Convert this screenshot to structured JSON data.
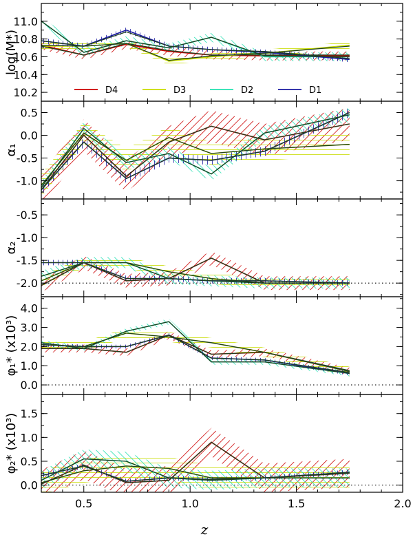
{
  "chart_data": {
    "type": "line",
    "xlabel": "z",
    "xlim": [
      0.3,
      2.0
    ],
    "x_ticks": [
      "0.5",
      "1.0",
      "1.5",
      "2.0"
    ],
    "x_tick_values": [
      0.5,
      1.0,
      1.5,
      2.0
    ],
    "legend": [
      {
        "name": "D4",
        "color": "#cc0000"
      },
      {
        "name": "D3",
        "color": "#c8dc00"
      },
      {
        "name": "D2",
        "color": "#22e0b0"
      },
      {
        "name": "D1",
        "color": "#1a1aa0"
      }
    ],
    "fit_line_color": "#1f4020",
    "panels": [
      {
        "ylabel": "log(M*)",
        "ylim": [
          10.1,
          11.2
        ],
        "yticks": [
          10.2,
          10.4,
          10.6,
          10.8,
          11.0
        ],
        "ytick_labels": [
          "10.2",
          "10.4",
          "10.6",
          "10.8",
          "11.0"
        ],
        "hline": null,
        "series": [
          {
            "name": "D4",
            "x": [
              0.3,
              0.5,
              0.7,
              0.9,
              1.1,
              1.35,
              1.75
            ],
            "y": [
              10.73,
              10.62,
              10.74,
              10.66,
              10.62,
              10.61,
              10.61
            ],
            "err": 0.05
          },
          {
            "name": "D3",
            "x": [
              0.3,
              0.5,
              0.7,
              0.9,
              1.1,
              1.35,
              1.75
            ],
            "y": [
              10.72,
              10.72,
              10.75,
              10.55,
              10.6,
              10.64,
              10.73
            ],
            "err": 0.04
          },
          {
            "name": "D2",
            "x": [
              0.3,
              0.5,
              0.7,
              0.9,
              1.1,
              1.35,
              1.75
            ],
            "y": [
              11.0,
              10.65,
              10.78,
              10.7,
              10.82,
              10.6,
              10.6
            ],
            "err": 0.05
          },
          {
            "name": "D1",
            "x": [
              0.3,
              0.5,
              0.7,
              0.9,
              1.1,
              1.35,
              1.75
            ],
            "y": [
              10.78,
              10.72,
              10.9,
              10.72,
              10.68,
              10.65,
              10.57
            ],
            "err": 0.03
          }
        ],
        "fits": [
          {
            "x": [
              0.3,
              0.5,
              0.7,
              0.9,
              1.1,
              1.35,
              1.75
            ],
            "y": [
              10.72,
              10.62,
              10.75,
              10.67,
              10.62,
              10.62,
              10.62
            ]
          },
          {
            "x": [
              0.3,
              0.5,
              0.7,
              0.9,
              1.1,
              1.35,
              1.75
            ],
            "y": [
              10.73,
              10.72,
              10.75,
              10.56,
              10.61,
              10.64,
              10.72
            ]
          },
          {
            "x": [
              0.3,
              0.5,
              0.7,
              0.9,
              1.1,
              1.35,
              1.75
            ],
            "y": [
              11.0,
              10.65,
              10.78,
              10.7,
              10.82,
              10.61,
              10.6
            ]
          },
          {
            "x": [
              0.3,
              0.5,
              0.7,
              0.9,
              1.1,
              1.35,
              1.75
            ],
            "y": [
              10.78,
              10.72,
              10.88,
              10.72,
              10.68,
              10.66,
              10.58
            ]
          }
        ]
      },
      {
        "ylabel": "α₁",
        "ylim": [
          -1.4,
          0.75
        ],
        "yticks": [
          -1.0,
          -0.5,
          0.0,
          0.5
        ],
        "ytick_labels": [
          "-1.0",
          "-0.5",
          "0.0",
          "0.5"
        ],
        "hline": null,
        "series": [
          {
            "name": "D4",
            "x": [
              0.3,
              0.5,
              0.7,
              0.9,
              1.1,
              1.35,
              1.75
            ],
            "y": [
              -1.2,
              0.0,
              -0.9,
              -0.15,
              0.2,
              -0.1,
              0.25
            ],
            "err": 0.35
          },
          {
            "name": "D3",
            "x": [
              0.3,
              0.5,
              0.7,
              0.9,
              1.1,
              1.35,
              1.75
            ],
            "y": [
              -1.1,
              0.05,
              -0.55,
              -0.05,
              -0.4,
              -0.3,
              -0.2
            ],
            "err": 0.25
          },
          {
            "name": "D2",
            "x": [
              0.3,
              0.5,
              0.7,
              0.9,
              1.1,
              1.35,
              1.75
            ],
            "y": [
              -1.15,
              0.15,
              -0.6,
              -0.4,
              -0.85,
              0.05,
              0.45
            ],
            "err": 0.15
          },
          {
            "name": "D1",
            "x": [
              0.3,
              0.5,
              0.7,
              0.9,
              1.1,
              1.35,
              1.75
            ],
            "y": [
              -1.2,
              -0.15,
              -0.95,
              -0.5,
              -0.55,
              -0.35,
              0.5
            ],
            "err": 0.1
          }
        ],
        "fits": [
          {
            "x": [
              0.3,
              0.5,
              0.7,
              0.9,
              1.1,
              1.35,
              1.75
            ],
            "y": [
              -1.2,
              0.0,
              -0.9,
              -0.15,
              0.2,
              -0.1,
              0.25
            ]
          },
          {
            "x": [
              0.3,
              0.5,
              0.7,
              0.9,
              1.1,
              1.35,
              1.75
            ],
            "y": [
              -1.1,
              0.05,
              -0.55,
              -0.05,
              -0.4,
              -0.3,
              -0.2
            ]
          },
          {
            "x": [
              0.3,
              0.5,
              0.7,
              0.9,
              1.1,
              1.35,
              1.75
            ],
            "y": [
              -1.15,
              0.15,
              -0.6,
              -0.4,
              -0.85,
              0.05,
              0.45
            ]
          },
          {
            "x": [
              0.3,
              0.5,
              0.7,
              0.9,
              1.1,
              1.35,
              1.75
            ],
            "y": [
              -1.2,
              -0.15,
              -0.95,
              -0.5,
              -0.55,
              -0.35,
              0.5
            ]
          }
        ]
      },
      {
        "ylabel": "α₂",
        "ylim": [
          -2.3,
          -0.15
        ],
        "yticks": [
          -2.0,
          -1.5,
          -1.0,
          -0.5
        ],
        "ytick_labels": [
          "-2.0",
          "-1.5",
          "-1.0",
          "-0.5"
        ],
        "hline": -2.0,
        "series": [
          {
            "name": "D4",
            "x": [
              0.3,
              0.5,
              0.7,
              0.9,
              1.1,
              1.35,
              1.75
            ],
            "y": [
              -2.05,
              -1.55,
              -1.95,
              -1.9,
              -1.45,
              -2.0,
              -2.0
            ],
            "err": 0.15
          },
          {
            "name": "D3",
            "x": [
              0.3,
              0.5,
              0.7,
              0.9,
              1.1,
              1.35,
              1.75
            ],
            "y": [
              -1.95,
              -1.55,
              -1.55,
              -1.75,
              -1.9,
              -2.0,
              -2.0
            ],
            "err": 0.12
          },
          {
            "name": "D2",
            "x": [
              0.3,
              0.5,
              0.7,
              0.9,
              1.1,
              1.35,
              1.75
            ],
            "y": [
              -1.85,
              -1.55,
              -1.55,
              -1.9,
              -1.95,
              -2.0,
              -2.0
            ],
            "err": 0.12
          },
          {
            "name": "D1",
            "x": [
              0.3,
              0.5,
              0.7,
              0.9,
              1.1,
              1.35,
              1.75
            ],
            "y": [
              -1.55,
              -1.55,
              -1.9,
              -1.9,
              -1.95,
              -1.95,
              -2.0
            ],
            "err": 0.06
          }
        ],
        "fits": [
          {
            "x": [
              0.3,
              0.5,
              0.7,
              0.9,
              1.1,
              1.35,
              1.75
            ],
            "y": [
              -2.05,
              -1.55,
              -1.95,
              -1.9,
              -1.45,
              -2.0,
              -2.0
            ]
          },
          {
            "x": [
              0.3,
              0.5,
              0.7,
              0.9,
              1.1,
              1.35,
              1.75
            ],
            "y": [
              -1.95,
              -1.55,
              -1.55,
              -1.75,
              -1.9,
              -2.0,
              -2.0
            ]
          },
          {
            "x": [
              0.3,
              0.5,
              0.7,
              0.9,
              1.1,
              1.35,
              1.75
            ],
            "y": [
              -1.85,
              -1.55,
              -1.55,
              -1.9,
              -1.95,
              -2.0,
              -2.0
            ]
          },
          {
            "x": [
              0.3,
              0.5,
              0.7,
              0.9,
              1.1,
              1.35,
              1.75
            ],
            "y": [
              -1.55,
              -1.55,
              -1.9,
              -1.9,
              -1.95,
              -1.95,
              -2.0
            ]
          }
        ]
      },
      {
        "ylabel": "φ₁* (x10³)",
        "ylim": [
          -0.5,
          4.6
        ],
        "yticks": [
          0.0,
          1.0,
          2.0,
          3.0,
          4.0
        ],
        "ytick_labels": [
          "0.0",
          "1.0",
          "2.0",
          "3.0",
          "4.0"
        ],
        "hline": 0.0,
        "series": [
          {
            "name": "D4",
            "x": [
              0.3,
              0.5,
              0.7,
              0.9,
              1.1,
              1.35,
              1.75
            ],
            "y": [
              1.9,
              1.9,
              1.7,
              2.6,
              1.6,
              1.7,
              0.7
            ],
            "err": 0.2
          },
          {
            "name": "D3",
            "x": [
              0.3,
              0.5,
              0.7,
              0.9,
              1.1,
              1.35,
              1.75
            ],
            "y": [
              2.1,
              2.0,
              2.7,
              2.5,
              2.2,
              1.7,
              0.7
            ],
            "err": 0.25
          },
          {
            "name": "D2",
            "x": [
              0.3,
              0.5,
              0.7,
              0.9,
              1.1,
              1.35,
              1.75
            ],
            "y": [
              2.2,
              1.9,
              2.8,
              3.3,
              1.2,
              1.2,
              0.6
            ],
            "err": 0.15
          },
          {
            "name": "D1",
            "x": [
              0.3,
              0.5,
              0.7,
              0.9,
              1.1,
              1.35,
              1.75
            ],
            "y": [
              2.1,
              2.0,
              2.0,
              2.6,
              1.4,
              1.3,
              0.6
            ],
            "err": 0.1
          }
        ],
        "fits": [
          {
            "x": [
              0.3,
              0.5,
              0.7,
              0.9,
              1.1,
              1.35,
              1.75
            ],
            "y": [
              1.9,
              1.9,
              1.7,
              2.6,
              1.6,
              1.7,
              0.75
            ]
          },
          {
            "x": [
              0.3,
              0.5,
              0.7,
              0.9,
              1.1,
              1.35,
              1.75
            ],
            "y": [
              2.1,
              2.0,
              2.7,
              2.5,
              2.2,
              1.7,
              0.7
            ]
          },
          {
            "x": [
              0.3,
              0.5,
              0.7,
              0.9,
              1.1,
              1.35,
              1.75
            ],
            "y": [
              2.2,
              1.9,
              2.8,
              3.3,
              1.2,
              1.2,
              0.6
            ]
          },
          {
            "x": [
              0.3,
              0.5,
              0.7,
              0.9,
              1.1,
              1.35,
              1.75
            ],
            "y": [
              2.1,
              2.0,
              2.0,
              2.6,
              1.4,
              1.3,
              0.65
            ]
          }
        ]
      },
      {
        "ylabel": "φ₂* (x10³)",
        "ylim": [
          -0.15,
          1.9
        ],
        "yticks": [
          0.0,
          0.5,
          1.0,
          1.5
        ],
        "ytick_labels": [
          "0.0",
          "0.5",
          "1.0",
          "1.5"
        ],
        "hline": 0.0,
        "series": [
          {
            "name": "D4",
            "x": [
              0.3,
              0.5,
              0.7,
              0.9,
              1.1,
              1.35,
              1.75
            ],
            "y": [
              0.02,
              0.42,
              0.05,
              0.1,
              0.9,
              0.15,
              0.25
            ],
            "err": 0.3
          },
          {
            "name": "D3",
            "x": [
              0.3,
              0.5,
              0.7,
              0.9,
              1.1,
              1.35,
              1.75
            ],
            "y": [
              0.05,
              0.3,
              0.4,
              0.35,
              0.15,
              0.15,
              0.15
            ],
            "err": 0.25
          },
          {
            "name": "D2",
            "x": [
              0.3,
              0.5,
              0.7,
              0.9,
              1.1,
              1.35,
              1.75
            ],
            "y": [
              0.1,
              0.55,
              0.5,
              0.15,
              0.1,
              0.15,
              0.15
            ],
            "err": 0.2
          },
          {
            "name": "D1",
            "x": [
              0.3,
              0.5,
              0.7,
              0.9,
              1.1,
              1.35,
              1.75
            ],
            "y": [
              0.2,
              0.4,
              0.08,
              0.15,
              0.12,
              0.15,
              0.27
            ],
            "err": 0.05
          }
        ],
        "fits": [
          {
            "x": [
              0.3,
              0.5,
              0.7,
              0.9,
              1.1,
              1.35,
              1.75
            ],
            "y": [
              0.02,
              0.42,
              0.05,
              0.1,
              0.9,
              0.15,
              0.25
            ]
          },
          {
            "x": [
              0.3,
              0.5,
              0.7,
              0.9,
              1.1,
              1.35,
              1.75
            ],
            "y": [
              0.05,
              0.3,
              0.4,
              0.35,
              0.15,
              0.15,
              0.15
            ]
          },
          {
            "x": [
              0.3,
              0.5,
              0.7,
              0.9,
              1.1,
              1.35,
              1.75
            ],
            "y": [
              0.1,
              0.55,
              0.5,
              0.15,
              0.1,
              0.15,
              0.15
            ]
          },
          {
            "x": [
              0.3,
              0.5,
              0.7,
              0.9,
              1.1,
              1.35,
              1.75
            ],
            "y": [
              0.2,
              0.4,
              0.08,
              0.15,
              0.12,
              0.15,
              0.27
            ]
          }
        ]
      }
    ]
  }
}
